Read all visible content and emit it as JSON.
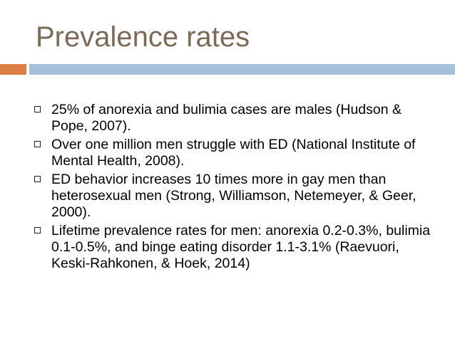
{
  "slide": {
    "title": "Prevalence rates",
    "colors": {
      "title": "#7a6a57",
      "accent_bar": "#dd8047",
      "main_bar": "#a7c0da"
    },
    "bullet_icon": "square-outline-icon",
    "bullets": [
      {
        "text": "25% of anorexia and bulimia cases are males (Hudson & Pope, 2007)."
      },
      {
        "text": "Over one million men struggle with ED (National Institute of Mental Health, 2008)."
      },
      {
        "text": "ED behavior increases 10 times more in gay men than heterosexual men (Strong, Williamson, Netemeyer, & Geer, 2000)."
      },
      {
        "text": "Lifetime prevalence rates for men: anorexia 0.2-0.3%, bulimia 0.1-0.5%, and binge eating disorder 1.1-3.1% (Raevuori, Keski-Rahkonen, & Hoek, 2014)"
      }
    ]
  }
}
